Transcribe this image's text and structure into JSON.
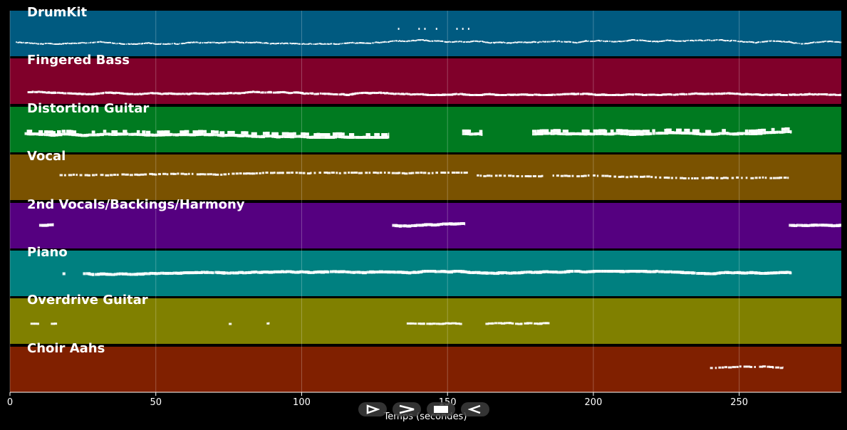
{
  "chart_data": {
    "type": "piano-roll",
    "xlabel": "Temps (secondes)",
    "xlim": [
      0,
      285
    ],
    "xticks": [
      0,
      50,
      100,
      150,
      200,
      250
    ],
    "tracks": [
      {
        "name": "DrumKit",
        "color": "#005a80",
        "segments": [
          [
            2,
            285
          ]
        ],
        "pattern": "dense-low",
        "accents": [
          [
            133,
            1
          ],
          [
            140,
            1
          ],
          [
            142,
            1
          ],
          [
            146,
            1
          ],
          [
            153,
            1
          ],
          [
            155,
            1
          ],
          [
            157,
            1
          ]
        ]
      },
      {
        "name": "Fingered Bass",
        "color": "#80002a",
        "segments": [
          [
            6,
            285
          ]
        ],
        "pattern": "bass"
      },
      {
        "name": "Distortion Guitar",
        "color": "#007a20",
        "segments": [
          [
            5,
            130
          ],
          [
            155,
            162
          ],
          [
            179,
            268
          ]
        ],
        "pattern": "chunky"
      },
      {
        "name": "Vocal",
        "color": "#7a5200",
        "segments": [
          [
            17,
            157
          ],
          [
            160,
            183
          ],
          [
            186,
            267
          ]
        ],
        "pattern": "sparse-mid"
      },
      {
        "name": "2nd Vocals/Backings/Harmony",
        "color": "#550080",
        "segments": [
          [
            10,
            15
          ],
          [
            131,
            156
          ],
          [
            267,
            285
          ]
        ],
        "pattern": "dense-mid"
      },
      {
        "name": "Piano",
        "color": "#008080",
        "segments": [
          [
            18,
            19
          ],
          [
            25,
            268
          ]
        ],
        "pattern": "dense-mid"
      },
      {
        "name": "Overdrive Guitar",
        "color": "#808000",
        "segments": [
          [
            7,
            10
          ],
          [
            14,
            16
          ],
          [
            75,
            76
          ],
          [
            88,
            89
          ],
          [
            136,
            155
          ],
          [
            163,
            185
          ]
        ],
        "pattern": "melodic"
      },
      {
        "name": "Choir Aahs",
        "color": "#802000",
        "segments": [
          [
            240,
            265
          ]
        ],
        "pattern": "sparse-mid"
      }
    ]
  },
  "controls": {
    "play_forward": "play-forward",
    "fast_forward": "fast-forward",
    "stop": "stop",
    "rewind": "rewind"
  }
}
